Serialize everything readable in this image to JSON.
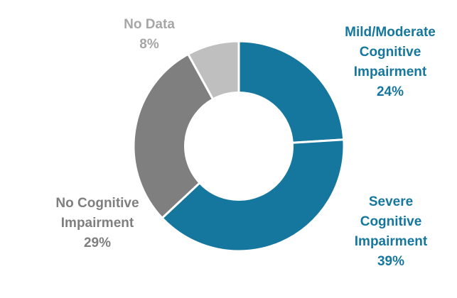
{
  "chart_data": {
    "type": "pie",
    "subtype": "donut",
    "title": "",
    "categories": [
      "Mild/Moderate Cognitive Impairment",
      "Severe Cognitive Impairment",
      "No Cognitive Impairment",
      "No Data"
    ],
    "values": [
      24,
      39,
      29,
      8
    ],
    "unit": "%",
    "slice_colors": [
      "#16779E",
      "#16779E",
      "#7F7F7F",
      "#BFBFBF"
    ],
    "slice_border_color": "#FFFFFF",
    "start_angle_deg": 0,
    "direction": "clockwise",
    "hole_ratio": 0.51,
    "legend_position": "none",
    "background": "#FFFFFF",
    "data_labels": [
      {
        "text": "Mild/Moderate\nCognitive\nImpairment\n24%",
        "color": "#16779E"
      },
      {
        "text": "Severe\nCognitive\nImpairment\n39%",
        "color": "#16779E"
      },
      {
        "text": "No Cognitive\nImpairment\n29%",
        "color": "#7F7F7F"
      },
      {
        "text": "No Data\n8%",
        "color": "#A6A6A6"
      }
    ]
  }
}
